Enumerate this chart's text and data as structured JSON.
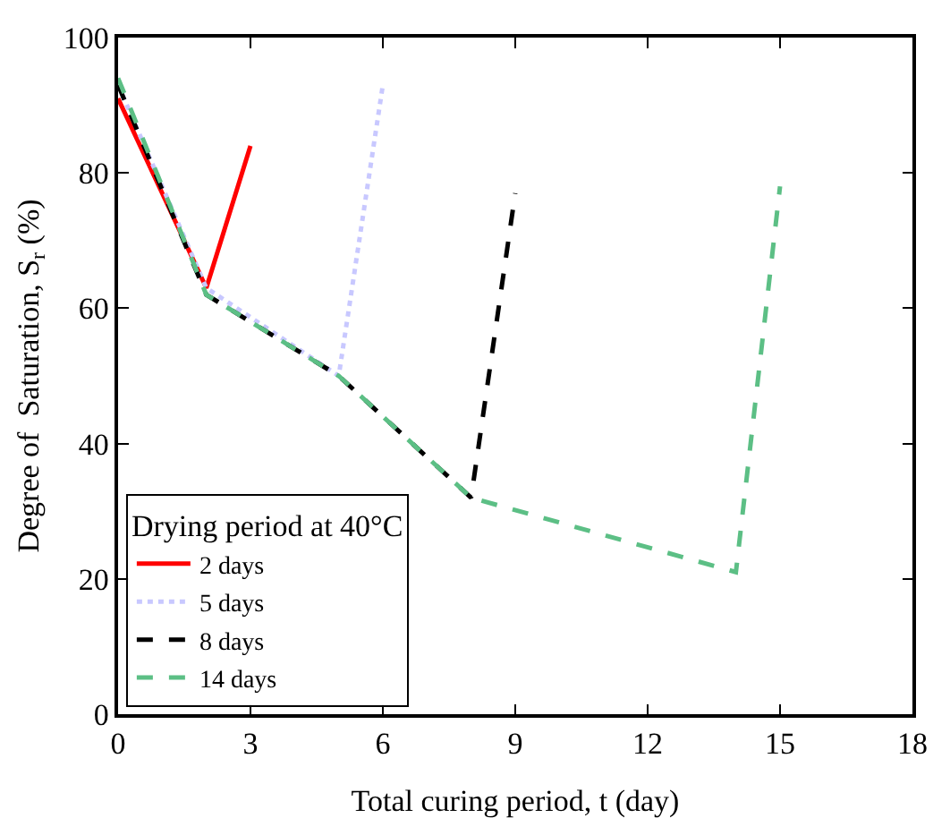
{
  "chart_data": {
    "type": "line",
    "xlabel": "Total curing period, t (day)",
    "ylabel": "Degree of  Saturation, S$_{r}$ (%)",
    "legend_title": "Drying period at 40°C",
    "legend": "bottom left",
    "grid": false,
    "xlim": [
      0,
      18
    ],
    "xticks": [
      0,
      3,
      6,
      9,
      12,
      15,
      18
    ],
    "ylim": [
      0,
      100
    ],
    "yticks": [
      0,
      20,
      40,
      60,
      80,
      100
    ],
    "series": [
      {
        "name": "2 days",
        "color": "#ff0000",
        "line_style": "solid",
        "x": [
          0,
          2,
          3
        ],
        "values": [
          91,
          63,
          84
        ]
      },
      {
        "name": "5 days",
        "color": "#c8c8ff",
        "line_style": "dotted",
        "x": [
          0,
          2,
          5,
          6
        ],
        "values": [
          93,
          63,
          50,
          93
        ]
      },
      {
        "name": "8 days",
        "color": "#000000",
        "line_style": "dashed",
        "x": [
          0,
          2,
          5,
          8,
          9
        ],
        "values": [
          93,
          62,
          50,
          32,
          77
        ]
      },
      {
        "name": "14 days",
        "color": "#5cbf85",
        "line_style": "dashed",
        "x": [
          0,
          2,
          5,
          8,
          14,
          15
        ],
        "values": [
          94,
          62,
          50,
          32,
          21,
          78
        ]
      }
    ]
  }
}
